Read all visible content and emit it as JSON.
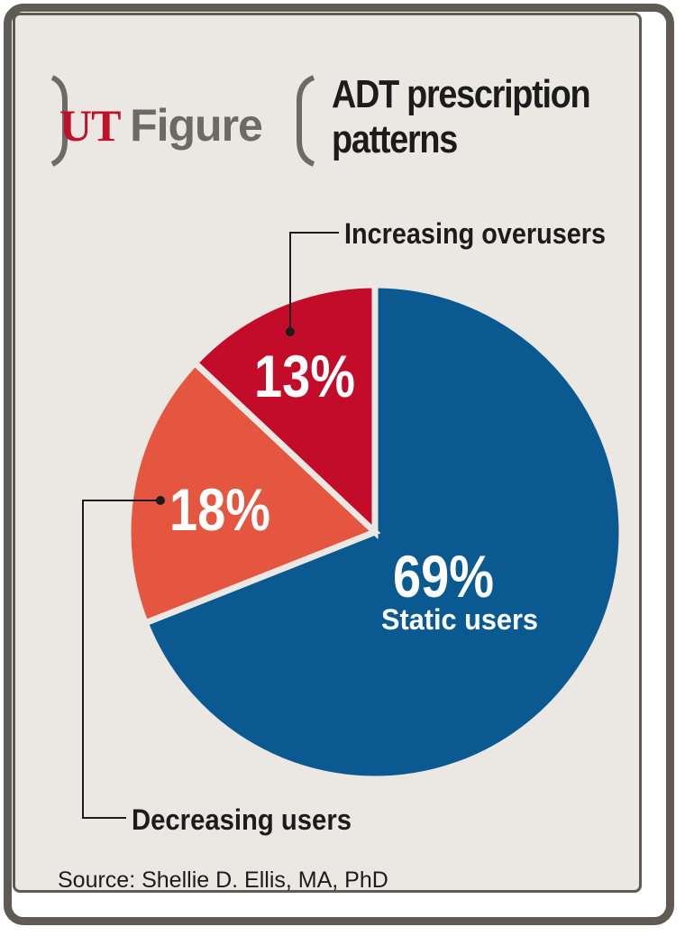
{
  "header": {
    "brand_ut": "UT",
    "brand_figure": "Figure",
    "title_line1": "ADT prescription",
    "title_line2": "patterns"
  },
  "colors": {
    "static": "#0a5a91",
    "decreasing": "#e55640",
    "increasing": "#c20c2a",
    "background": "#ebe8e4",
    "frame": "#5e5b55"
  },
  "chart_data": {
    "type": "pie",
    "title": "ADT prescription patterns",
    "slices": [
      {
        "label": "Static users",
        "value": 69,
        "display": "69%",
        "sublabel": "Static users",
        "color": "#0a5a91"
      },
      {
        "label": "Decreasing users",
        "value": 18,
        "display": "18%",
        "sublabel": "",
        "color": "#e55640"
      },
      {
        "label": "Increasing overusers",
        "value": 13,
        "display": "13%",
        "sublabel": "",
        "color": "#c20c2a"
      }
    ],
    "callouts": {
      "increasing": "Increasing overusers",
      "decreasing": "Decreasing users"
    }
  },
  "footer": {
    "source": "Source: Shellie D. Ellis, MA, PhD"
  }
}
